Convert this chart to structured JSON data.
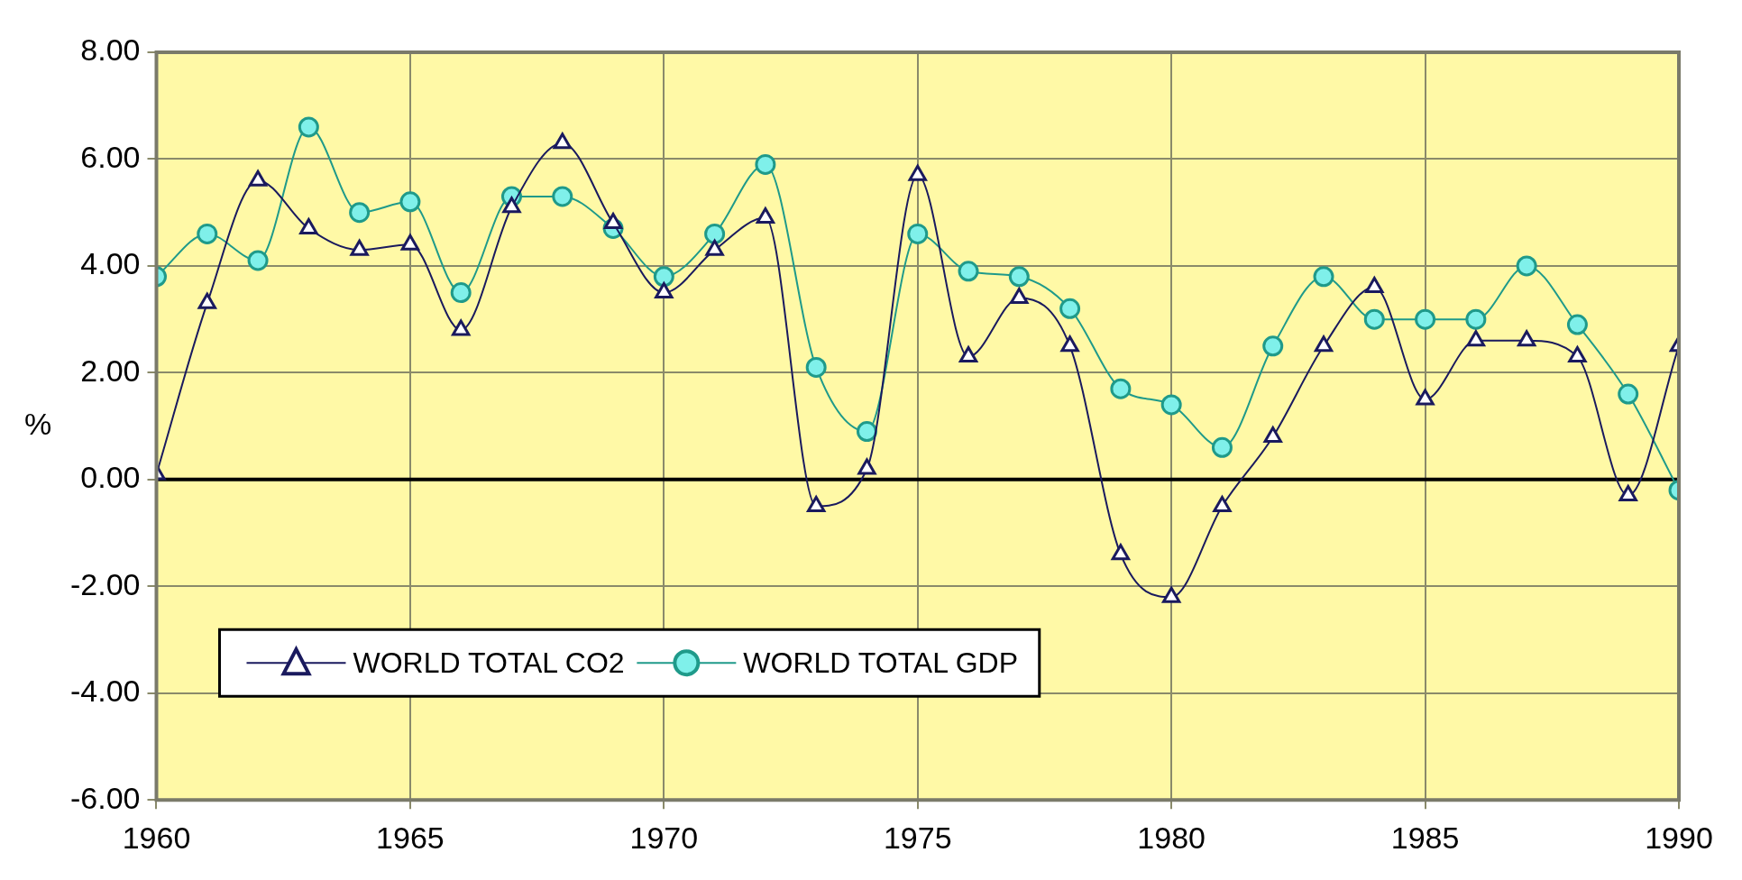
{
  "chart_data": {
    "type": "line",
    "ylabel": "%",
    "x": [
      1960,
      1961,
      1962,
      1963,
      1964,
      1965,
      1966,
      1967,
      1968,
      1969,
      1970,
      1971,
      1972,
      1973,
      1974,
      1975,
      1976,
      1977,
      1978,
      1979,
      1980,
      1981,
      1982,
      1983,
      1984,
      1985,
      1986,
      1987,
      1988,
      1989,
      1990
    ],
    "series": [
      {
        "name": "WORLD TOTAL CO2",
        "color": "#1a1a5e",
        "marker": "triangle",
        "values": [
          0.1,
          3.3,
          5.6,
          4.7,
          4.3,
          4.4,
          2.8,
          5.1,
          6.3,
          4.8,
          3.5,
          4.3,
          4.9,
          -0.5,
          0.2,
          5.7,
          2.3,
          3.4,
          2.5,
          -1.4,
          -2.2,
          -0.5,
          0.8,
          2.5,
          3.6,
          1.5,
          2.6,
          2.6,
          2.3,
          -0.3,
          2.5
        ]
      },
      {
        "name": "WORLD TOTAL GDP",
        "color": "#1f9a8a",
        "marker": "circle",
        "values": [
          3.8,
          4.6,
          4.1,
          6.6,
          5.0,
          5.2,
          3.5,
          5.3,
          5.3,
          4.7,
          3.8,
          4.6,
          5.9,
          2.1,
          0.9,
          4.6,
          3.9,
          3.8,
          3.2,
          1.7,
          1.4,
          0.6,
          2.5,
          3.8,
          3.0,
          3.0,
          3.0,
          4.0,
          2.9,
          1.6,
          -0.2
        ]
      }
    ],
    "xlim": [
      1960,
      1990
    ],
    "xticks": [
      1960,
      1965,
      1970,
      1975,
      1980,
      1985,
      1990
    ],
    "ylim": [
      -6,
      8
    ],
    "yticks": [
      {
        "value": -6,
        "label": "-6.00"
      },
      {
        "value": -4,
        "label": "-4.00"
      },
      {
        "value": -2,
        "label": "-2.00"
      },
      {
        "value": 0,
        "label": "0.00"
      },
      {
        "value": 2,
        "label": "2.00"
      },
      {
        "value": 4,
        "label": "4.00"
      },
      {
        "value": 6,
        "label": "6.00"
      },
      {
        "value": 8,
        "label": "8.00"
      }
    ],
    "ref_lines": [
      {
        "axis": "y",
        "value": 0,
        "color": "#000000"
      }
    ],
    "grid": true,
    "legend": "bottom left"
  }
}
